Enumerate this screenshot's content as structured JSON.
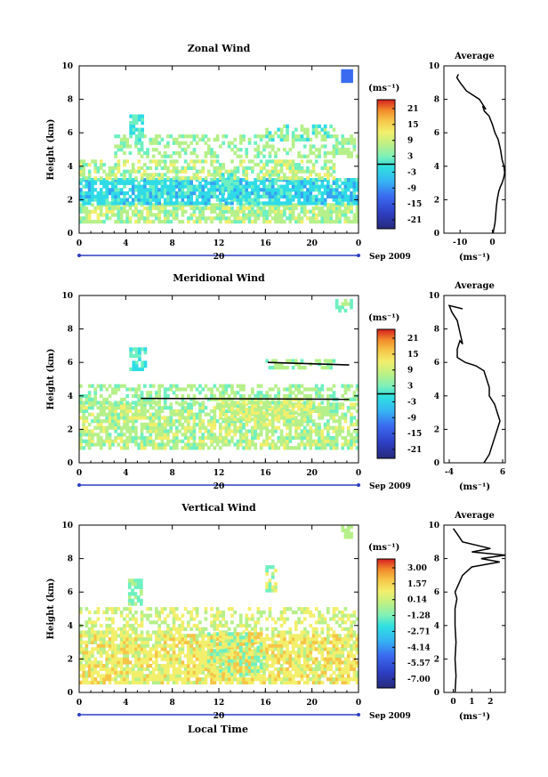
{
  "xlabel": "Local Time",
  "date_label": "Sep 2009",
  "day_label": "20",
  "colorbar_unit": "(ms⁻¹)",
  "avg_title": "Average",
  "avg_xlabel": "(ms⁻¹)",
  "ylabel": "Height (km)",
  "colors": {
    "palette": [
      "#262a7a",
      "#2e3ec2",
      "#3a6af0",
      "#35a3f2",
      "#2fdbe7",
      "#6ef0c0",
      "#b6f08a",
      "#f2ef6c",
      "#f6c447",
      "#f2892a",
      "#e44b22",
      "#c91b1b"
    ]
  },
  "chart_data": [
    {
      "type": "heatmap",
      "title": "Zonal Wind",
      "x_ticks": [
        "0",
        "4",
        "8",
        "12",
        "16",
        "20",
        "0"
      ],
      "y_ticks": [
        "0",
        "2",
        "4",
        "6",
        "8",
        "10"
      ],
      "xlim": [
        0,
        24
      ],
      "ylim": [
        0,
        10
      ],
      "colorbar_ticks": [
        "21",
        "15",
        "9",
        "3",
        "-3",
        "-9",
        "-15",
        "-21"
      ],
      "avg_x_ticks": [
        "-10",
        "0"
      ],
      "avg_xlim": [
        -15,
        4
      ],
      "avg_profile": [
        [
          0,
          0.2
        ],
        [
          0.3,
          0.5
        ],
        [
          0.6,
          0.8
        ],
        [
          1,
          1.0
        ],
        [
          1.5,
          1.2
        ],
        [
          2,
          1.5
        ],
        [
          2.5,
          2.0
        ],
        [
          2.8,
          2.5
        ],
        [
          3.0,
          3.0
        ],
        [
          3.3,
          3.5
        ],
        [
          3.6,
          3.8
        ],
        [
          4.0,
          3.6
        ],
        [
          4.4,
          3.0
        ],
        [
          5.0,
          2.5
        ],
        [
          5.6,
          1.8
        ],
        [
          6.0,
          0.8
        ],
        [
          6.5,
          0.0
        ],
        [
          7.0,
          -1.0
        ],
        [
          7.3,
          -2.5
        ],
        [
          7.6,
          -3.0
        ],
        [
          7.4,
          -2.0
        ],
        [
          8.0,
          -4.0
        ],
        [
          8.5,
          -8.0
        ],
        [
          9.0,
          -10.0
        ],
        [
          9.3,
          -11.0
        ],
        [
          9.5,
          -10.5
        ]
      ]
    },
    {
      "type": "heatmap",
      "title": "Meridional Wind",
      "x_ticks": [
        "0",
        "4",
        "8",
        "12",
        "16",
        "20",
        "0"
      ],
      "y_ticks": [
        "0",
        "2",
        "4",
        "6",
        "8",
        "10"
      ],
      "xlim": [
        0,
        24
      ],
      "ylim": [
        0,
        10
      ],
      "colorbar_ticks": [
        "21",
        "15",
        "9",
        "3",
        "-3",
        "-9",
        "-15",
        "-21"
      ],
      "avg_x_ticks": [
        "-4",
        "6"
      ],
      "avg_xlim": [
        -5,
        6.5
      ],
      "avg_profile": [
        [
          0,
          2.5
        ],
        [
          0.5,
          3.5
        ],
        [
          1.0,
          4.0
        ],
        [
          1.5,
          4.5
        ],
        [
          2.0,
          5.0
        ],
        [
          2.5,
          5.5
        ],
        [
          3.0,
          5.0
        ],
        [
          3.5,
          4.5
        ],
        [
          4.0,
          3.5
        ],
        [
          4.5,
          3.5
        ],
        [
          5.0,
          3.0
        ],
        [
          5.5,
          2.5
        ],
        [
          5.8,
          1.0
        ],
        [
          6.0,
          -1.0
        ],
        [
          6.3,
          -2.5
        ],
        [
          6.8,
          -2.5
        ],
        [
          7.3,
          -2.0
        ],
        [
          7.1,
          -1.5
        ],
        [
          8.5,
          -2.5
        ],
        [
          9.0,
          -3.5
        ],
        [
          9.4,
          -4.0
        ],
        [
          9.2,
          -1.5
        ]
      ]
    },
    {
      "type": "heatmap",
      "title": "Vertical Wind",
      "x_ticks": [
        "0",
        "4",
        "8",
        "12",
        "16",
        "20",
        "0"
      ],
      "y_ticks": [
        "0",
        "2",
        "4",
        "6",
        "8",
        "10"
      ],
      "xlim": [
        0,
        24
      ],
      "ylim": [
        0,
        10
      ],
      "colorbar_ticks": [
        "3.00",
        "1.57",
        "0.14",
        "-1.28",
        "-2.71",
        "-4.14",
        "-5.57",
        "-7.00"
      ],
      "avg_x_ticks": [
        "0",
        "1",
        "2"
      ],
      "avg_xlim": [
        -0.5,
        2.8
      ],
      "avg_profile": [
        [
          0,
          0.1
        ],
        [
          1,
          0.15
        ],
        [
          2,
          0.1
        ],
        [
          3,
          0.15
        ],
        [
          4,
          0.1
        ],
        [
          5,
          0.1
        ],
        [
          5.6,
          0.2
        ],
        [
          6,
          0.1
        ],
        [
          6.5,
          0.3
        ],
        [
          7,
          0.5
        ],
        [
          7.5,
          1.0
        ],
        [
          7.8,
          2.5
        ],
        [
          8.0,
          1.5
        ],
        [
          8.2,
          2.8
        ],
        [
          8.4,
          1.0
        ],
        [
          8.6,
          2.0
        ],
        [
          9.0,
          0.5
        ],
        [
          9.5,
          0.2
        ],
        [
          9.8,
          0.0
        ]
      ]
    }
  ]
}
